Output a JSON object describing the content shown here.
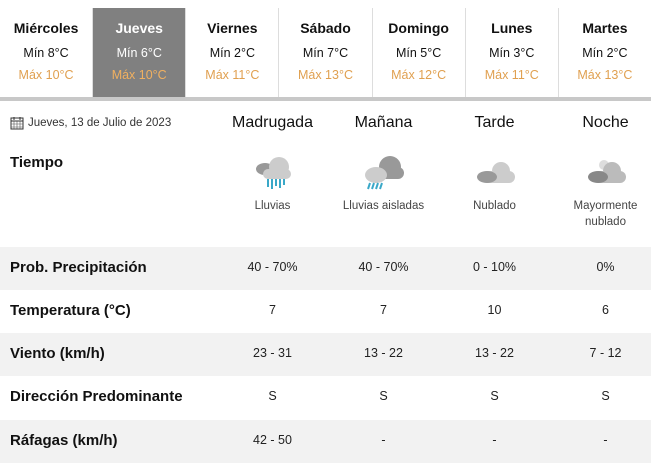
{
  "days": [
    {
      "name": "Miércoles",
      "min": "Mín 8°C",
      "max": "Máx 10°C"
    },
    {
      "name": "Jueves",
      "min": "Mín 6°C",
      "max": "Máx 10°C"
    },
    {
      "name": "Viernes",
      "min": "Mín 2°C",
      "max": "Máx 11°C"
    },
    {
      "name": "Sábado",
      "min": "Mín 7°C",
      "max": "Máx 13°C"
    },
    {
      "name": "Domingo",
      "min": "Mín 5°C",
      "max": "Máx 12°C"
    },
    {
      "name": "Lunes",
      "min": "Mín 3°C",
      "max": "Máx 11°C"
    },
    {
      "name": "Martes",
      "min": "Mín 2°C",
      "max": "Máx 13°C"
    }
  ],
  "selected_day": "Jueves",
  "date": "Jueves, 13 de Julio de 2023",
  "periods": [
    "Madrugada",
    "Mañana",
    "Tarde",
    "Noche"
  ],
  "tiempo_label": "Tiempo",
  "conditions": [
    {
      "icon": "rain-cloud-icon",
      "text": "Lluvias"
    },
    {
      "icon": "storm-cloud-icon",
      "text": "Lluvias aisladas"
    },
    {
      "icon": "cloudy-icon",
      "text": "Nublado"
    },
    {
      "icon": "mostly-cloudy-night-icon",
      "text": "Mayormente nublado"
    }
  ],
  "rows": [
    {
      "label": "Prob. Precipitación",
      "values": [
        "40 - 70%",
        "40 - 70%",
        "0 - 10%",
        "0%"
      ]
    },
    {
      "label": "Temperatura (°C)",
      "values": [
        "7",
        "7",
        "10",
        "6"
      ]
    },
    {
      "label": "Viento (km/h)",
      "values": [
        "23 - 31",
        "13 - 22",
        "13 - 22",
        "7 - 12"
      ]
    },
    {
      "label": "Dirección Predominante",
      "values": [
        "S",
        "S",
        "S",
        "S"
      ]
    },
    {
      "label": "Ráfagas (km/h)",
      "values": [
        "42 - 50",
        "-",
        "-",
        "-"
      ]
    }
  ],
  "colors": {
    "selected_tab": "#808080",
    "max_temp": "#e0a050",
    "stripe": "#f2f2f2"
  }
}
